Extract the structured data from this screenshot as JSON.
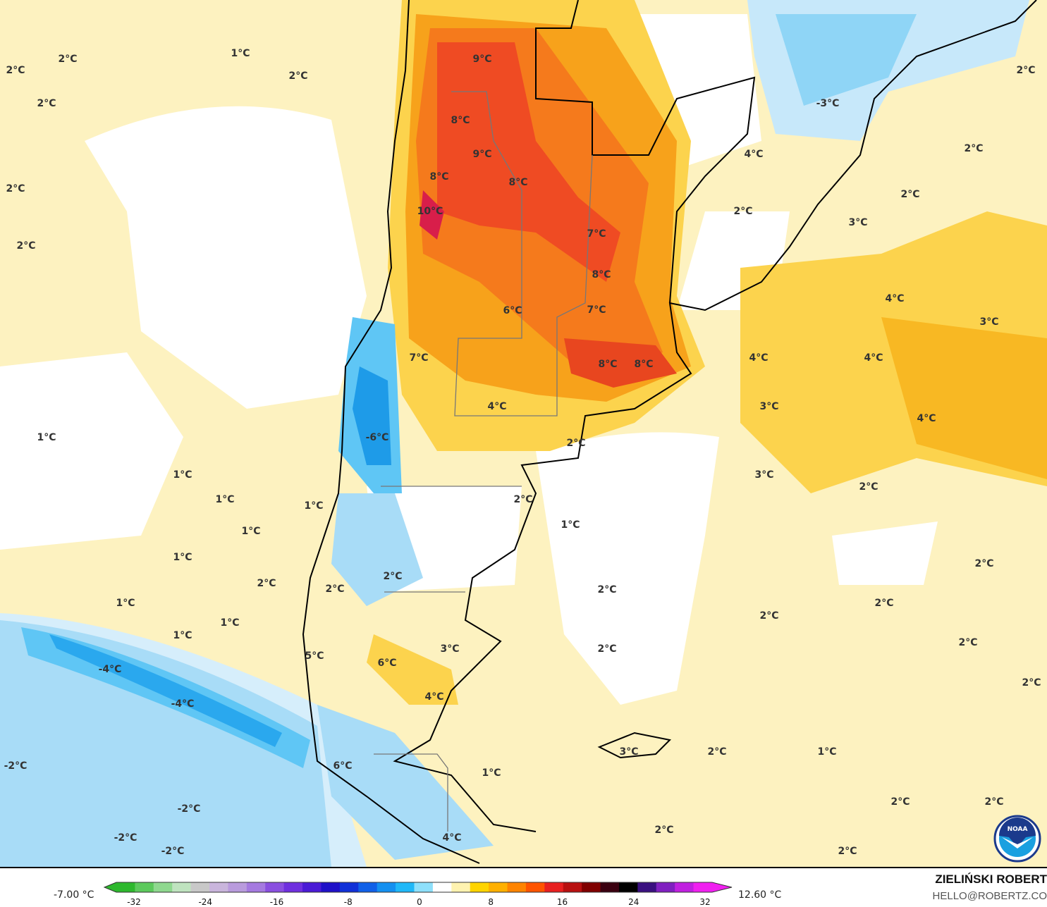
{
  "map": {
    "variable_unit": "°C",
    "contour_labels": [
      "2°C",
      "2°C",
      "1°C",
      "2°C",
      "2°C",
      "2°C",
      "2°C",
      "9°C",
      "8°C",
      "9°C",
      "8°C",
      "8°C",
      "10°C",
      "7°C",
      "8°C",
      "6°C",
      "7°C",
      "7°C",
      "8°C",
      "8°C",
      "4°C",
      "-6°C",
      "2°C",
      "1°C",
      "1°C",
      "1°C",
      "1°C",
      "2°C",
      "1°C",
      "1°C",
      "1°C",
      "2°C",
      "2°C",
      "2°C",
      "1°C",
      "1°C",
      "1°C",
      "2°C",
      "2°C",
      "3°C",
      "5°C",
      "6°C",
      "-4°C",
      "-4°C",
      "4°C",
      "-2°C",
      "6°C",
      "1°C",
      "-2°C",
      "-2°C",
      "-2°C",
      "4°C",
      "2°C",
      "3°C",
      "2°C",
      "1°C",
      "2°C",
      "2°C",
      "2°C",
      "2°C",
      "2°C",
      "2°C",
      "2°C",
      "2°C",
      "2°C",
      "3°C",
      "4°C",
      "3°C",
      "4°C",
      "4°C",
      "3°C",
      "4°C",
      "3°C",
      "2°C",
      "2°C",
      "2°C",
      "4°C",
      "-3°C",
      "2°C"
    ],
    "colors": {
      "warm_light": "#fdf2c0",
      "warm_mid": "#fcd34d",
      "orange": "#f7a21b",
      "red": "#ef4b23",
      "cold_light": "#d6eefb",
      "cold_mid": "#5fc6f5",
      "cold_deep": "#1e9be8"
    }
  },
  "legend": {
    "min_label": "-7.00 °C",
    "max_label": "12.60 °C",
    "ticks": [
      "-32",
      "-24",
      "-16",
      "-8",
      "0",
      "8",
      "16",
      "24",
      "32"
    ],
    "scale_colors": [
      "#2db82d",
      "#5cc95c",
      "#8fd88f",
      "#bfe3bf",
      "#c8c8c8",
      "#c9b5dc",
      "#b99bdd",
      "#a57ae0",
      "#8a4fe0",
      "#6f2fdf",
      "#4a1ad6",
      "#1f10c8",
      "#1030d8",
      "#1060e8",
      "#1490f0",
      "#20b8f8",
      "#8ee0fb",
      "#ffffff",
      "#fff3b0",
      "#ffd400",
      "#ffb000",
      "#ff8400",
      "#ff5400",
      "#e82020",
      "#b81010",
      "#800000",
      "#3a0010",
      "#000000",
      "#3a1080",
      "#8020c0",
      "#c020e0",
      "#f020f0"
    ]
  },
  "credit": {
    "author": "ZIELIŃSKI ROBERT",
    "email": "HELLO@ROBERTZ.CO",
    "logo_text": "NOAA"
  }
}
